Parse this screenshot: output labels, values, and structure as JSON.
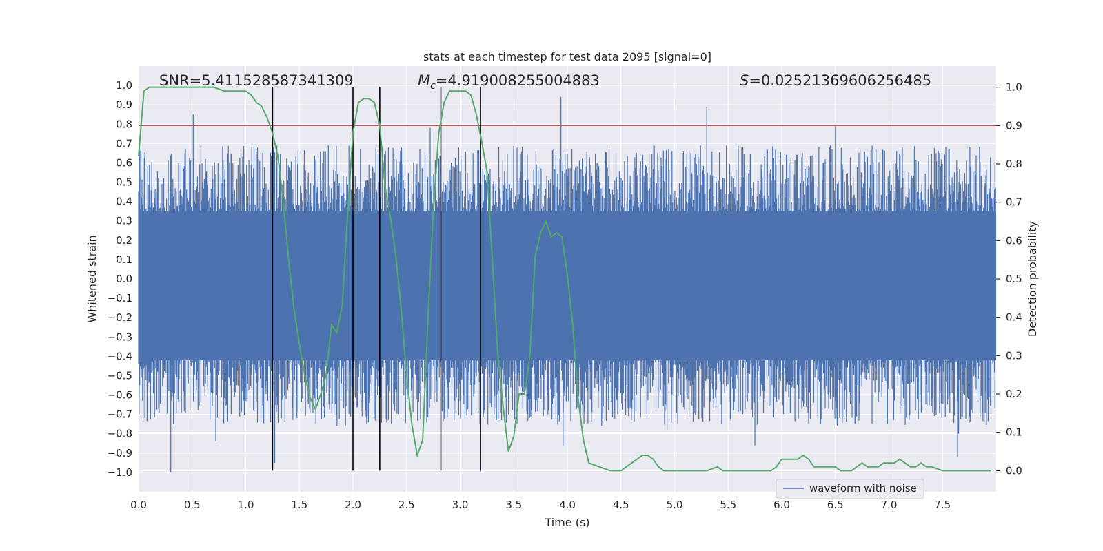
{
  "chart_data": {
    "type": "line",
    "title": "stats at each timestep for test data 2095 [signal=0]",
    "xlabel": "Time (s)",
    "ylabel": "Whitened strain",
    "y2label": "Detection probability",
    "xlim": [
      0.0,
      8.0
    ],
    "ylim": [
      -1.1,
      1.1
    ],
    "y2lim": [
      -0.055,
      1.055
    ],
    "x_ticks": [
      0.0,
      0.5,
      1.0,
      1.5,
      2.0,
      2.5,
      3.0,
      3.5,
      4.0,
      4.5,
      5.0,
      5.5,
      6.0,
      6.5,
      7.0,
      7.5
    ],
    "x_tick_labels": [
      "0.0",
      "0.5",
      "1.0",
      "1.5",
      "2.0",
      "2.5",
      "3.0",
      "3.5",
      "4.0",
      "4.5",
      "5.0",
      "5.5",
      "6.0",
      "6.5",
      "7.0",
      "7.5"
    ],
    "y_ticks": [
      1.0,
      0.9,
      0.8,
      0.7,
      0.6,
      0.5,
      0.4,
      0.3,
      0.2,
      0.1,
      0.0,
      -0.1,
      -0.2,
      -0.3,
      -0.4,
      -0.5,
      -0.6,
      -0.7,
      -0.8,
      -0.9,
      -1.0
    ],
    "y_tick_labels": [
      "1.0",
      "0.9",
      "0.8",
      "0.7",
      "0.6",
      "0.5",
      "0.4",
      "0.3",
      "0.2",
      "0.1",
      "0.0",
      "−0.1",
      "−0.2",
      "−0.3",
      "−0.4",
      "−0.5",
      "−0.6",
      "−0.7",
      "−0.8",
      "−0.9",
      "−1.0"
    ],
    "y2_ticks": [
      1.0,
      0.9,
      0.8,
      0.7,
      0.6,
      0.5,
      0.4,
      0.3,
      0.2,
      0.1,
      0.0
    ],
    "y2_tick_labels": [
      "1.0",
      "0.9",
      "0.8",
      "0.7",
      "0.6",
      "0.5",
      "0.4",
      "0.3",
      "0.2",
      "0.1",
      "0.0"
    ],
    "grid": true,
    "threshold": 0.9,
    "vertical_lines_x": [
      1.25,
      2.0,
      2.25,
      2.82,
      3.19
    ],
    "waveform": {
      "name": "waveform with noise",
      "color": "#4c72b0",
      "core_range": [
        -0.42,
        0.35
      ],
      "typical_envelope": [
        -0.6,
        0.6
      ],
      "spikes": [
        {
          "x": 0.3,
          "y": -1.0
        },
        {
          "x": 0.51,
          "y": 0.85
        },
        {
          "x": 0.72,
          "y": -0.84
        },
        {
          "x": 1.27,
          "y": -0.95
        },
        {
          "x": 3.19,
          "y": -1.0
        },
        {
          "x": 3.94,
          "y": 0.94
        },
        {
          "x": 3.96,
          "y": -0.86
        },
        {
          "x": 5.3,
          "y": 0.89
        },
        {
          "x": 5.75,
          "y": -0.86
        },
        {
          "x": 6.5,
          "y": 0.79
        },
        {
          "x": 7.64,
          "y": -0.92
        },
        {
          "x": 7.65,
          "y": -0.8
        },
        {
          "x": 4.93,
          "y": -0.78
        },
        {
          "x": 2.72,
          "y": 0.78
        }
      ]
    },
    "probability": {
      "name": "Detection probability",
      "color": "#55a868",
      "x": [
        0.0,
        0.05,
        0.1,
        0.2,
        0.3,
        0.4,
        0.5,
        0.6,
        0.7,
        0.8,
        0.9,
        1.0,
        1.05,
        1.1,
        1.15,
        1.2,
        1.25,
        1.3,
        1.35,
        1.4,
        1.45,
        1.5,
        1.55,
        1.6,
        1.65,
        1.7,
        1.75,
        1.8,
        1.85,
        1.9,
        1.95,
        2.0,
        2.05,
        2.1,
        2.15,
        2.2,
        2.25,
        2.3,
        2.35,
        2.4,
        2.45,
        2.5,
        2.55,
        2.6,
        2.65,
        2.7,
        2.75,
        2.8,
        2.85,
        2.9,
        2.95,
        3.0,
        3.05,
        3.1,
        3.15,
        3.2,
        3.25,
        3.3,
        3.35,
        3.4,
        3.45,
        3.5,
        3.55,
        3.6,
        3.65,
        3.7,
        3.75,
        3.8,
        3.85,
        3.9,
        3.95,
        4.0,
        4.05,
        4.1,
        4.15,
        4.2,
        4.3,
        4.4,
        4.5,
        4.55,
        4.6,
        4.65,
        4.7,
        4.75,
        4.8,
        4.85,
        4.9,
        5.0,
        5.1,
        5.2,
        5.3,
        5.4,
        5.45,
        5.5,
        5.55,
        5.6,
        5.7,
        5.8,
        5.9,
        5.95,
        6.0,
        6.1,
        6.15,
        6.2,
        6.25,
        6.3,
        6.35,
        6.4,
        6.5,
        6.55,
        6.6,
        6.65,
        6.7,
        6.75,
        6.8,
        6.85,
        6.9,
        6.95,
        7.0,
        7.05,
        7.1,
        7.15,
        7.2,
        7.25,
        7.3,
        7.35,
        7.4,
        7.5,
        7.6,
        7.7,
        7.8,
        7.9,
        7.95
      ],
      "y": [
        0.82,
        0.99,
        1.0,
        1.0,
        1.0,
        1.0,
        1.0,
        1.0,
        1.0,
        0.99,
        0.99,
        0.99,
        0.98,
        0.96,
        0.95,
        0.92,
        0.88,
        0.82,
        0.7,
        0.55,
        0.42,
        0.33,
        0.25,
        0.19,
        0.16,
        0.2,
        0.25,
        0.38,
        0.36,
        0.43,
        0.67,
        0.88,
        0.96,
        0.97,
        0.97,
        0.96,
        0.9,
        0.74,
        0.66,
        0.56,
        0.42,
        0.25,
        0.12,
        0.04,
        0.08,
        0.4,
        0.68,
        0.88,
        0.96,
        0.99,
        0.99,
        0.99,
        0.99,
        0.98,
        0.93,
        0.86,
        0.78,
        0.55,
        0.31,
        0.17,
        0.05,
        0.09,
        0.2,
        0.2,
        0.3,
        0.56,
        0.62,
        0.65,
        0.61,
        0.62,
        0.61,
        0.51,
        0.38,
        0.19,
        0.08,
        0.02,
        0.01,
        0.0,
        0.0,
        0.01,
        0.02,
        0.03,
        0.04,
        0.04,
        0.03,
        0.01,
        0.0,
        0.0,
        0.0,
        0.0,
        0.0,
        0.01,
        0.0,
        0.0,
        0.0,
        0.0,
        0.0,
        0.0,
        0.0,
        0.01,
        0.03,
        0.03,
        0.03,
        0.04,
        0.03,
        0.01,
        0.01,
        0.01,
        0.01,
        0.0,
        0.0,
        0.0,
        0.01,
        0.02,
        0.01,
        0.01,
        0.01,
        0.02,
        0.02,
        0.02,
        0.03,
        0.02,
        0.01,
        0.01,
        0.02,
        0.01,
        0.01,
        0.0,
        0.0,
        0.0,
        0.0,
        0.0,
        0.0
      ]
    },
    "threshold_color": "#c44e52",
    "annotations": {
      "snr_text": "SNR=5.411528587341309",
      "mc_symbol": "M",
      "mc_subscript": "c",
      "mc_value": "=4.919008255004883",
      "s_symbol": "S",
      "s_value": "=0.02521369606256485"
    },
    "legend": {
      "label": "waveform with noise",
      "position": "lower right"
    }
  }
}
